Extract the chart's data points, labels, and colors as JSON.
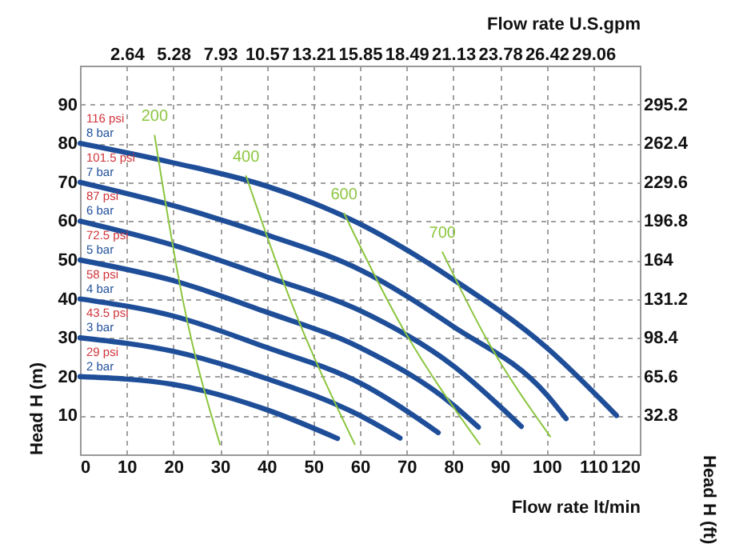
{
  "chart_data": {
    "type": "line",
    "xlabel": "Flow rate  lt/min",
    "ylabel": "Head H (m)",
    "y2label": "Head H (ft)",
    "x2label": "Flow rate U.S.gpm",
    "xlim": [
      0,
      120
    ],
    "xticks": [
      0,
      10,
      20,
      30,
      40,
      50,
      60,
      70,
      80,
      90,
      100,
      110,
      120
    ],
    "ylim": [
      0,
      100
    ],
    "yticks": [
      10,
      20,
      30,
      40,
      50,
      60,
      70,
      80,
      90
    ],
    "y2lim": [
      0,
      328
    ],
    "y2ticks": [
      32.8,
      65.6,
      98.4,
      131.2,
      164,
      196.8,
      229.6,
      262.4,
      295.2
    ],
    "x2lim": [
      0,
      31.7
    ],
    "x2ticks": [
      2.64,
      5.28,
      7.93,
      10.57,
      13.21,
      15.85,
      18.49,
      21.13,
      23.78,
      26.42,
      29.06
    ],
    "grid": true,
    "marker": "none",
    "line_style": "solid",
    "series": [
      {
        "name": "8 bar",
        "color": "#1f4e99",
        "x": [
          0,
          20,
          40,
          60,
          80,
          100,
          115
        ],
        "values": [
          80,
          75,
          69,
          59.3,
          45,
          27.5,
          10
        ]
      },
      {
        "name": "7 bar",
        "color": "#1f4e99",
        "x": [
          0,
          20,
          40,
          60,
          80,
          100,
          104.2
        ],
        "values": [
          70,
          64,
          56.5,
          47.5,
          32.9,
          15.4,
          9.2
        ]
      },
      {
        "name": "6 bar",
        "color": "#1f4e99",
        "x": [
          0,
          20,
          40,
          60,
          80,
          94.6
        ],
        "values": [
          60,
          53.8,
          45.7,
          37,
          22.8,
          7.2
        ]
      },
      {
        "name": "5 bar",
        "color": "#1f4e99",
        "x": [
          0,
          20,
          40,
          60,
          80,
          85.4
        ],
        "values": [
          50,
          44.7,
          36.6,
          27.5,
          12.7,
          7
        ]
      },
      {
        "name": "4 bar",
        "color": "#1f4e99",
        "x": [
          0,
          20,
          40,
          60,
          76.8
        ],
        "values": [
          40,
          35.6,
          27.5,
          18.4,
          5.6
        ]
      },
      {
        "name": "3 bar",
        "color": "#1f4e99",
        "x": [
          0,
          20,
          40,
          60,
          68.6
        ],
        "values": [
          30,
          26.5,
          19.5,
          10,
          4.2
        ]
      },
      {
        "name": "2 bar",
        "color": "#1f4e99",
        "x": [
          0,
          20,
          40,
          55.2
        ],
        "values": [
          20,
          18,
          11.5,
          4.1
        ]
      },
      {
        "name": "200",
        "color": "#8cc63f",
        "x": [
          16,
          22,
          30
        ],
        "values": [
          82,
          40,
          2.6
        ]
      },
      {
        "name": "400",
        "color": "#8cc63f",
        "x": [
          35.6,
          45,
          58.9
        ],
        "values": [
          71.6,
          40,
          2.6
        ]
      },
      {
        "name": "600",
        "color": "#8cc63f",
        "x": [
          56.6,
          68,
          85.7
        ],
        "values": [
          62,
          35,
          2.6
        ]
      },
      {
        "name": "700",
        "color": "#8cc63f",
        "x": [
          77.7,
          87,
          100.8
        ],
        "values": [
          52,
          30,
          4.6
        ]
      }
    ],
    "annotations": [
      "116 psi",
      "101.5 psi",
      "87 psi",
      "72.5 psi",
      "58 psi",
      "43.5 psi",
      "29 psi"
    ]
  }
}
